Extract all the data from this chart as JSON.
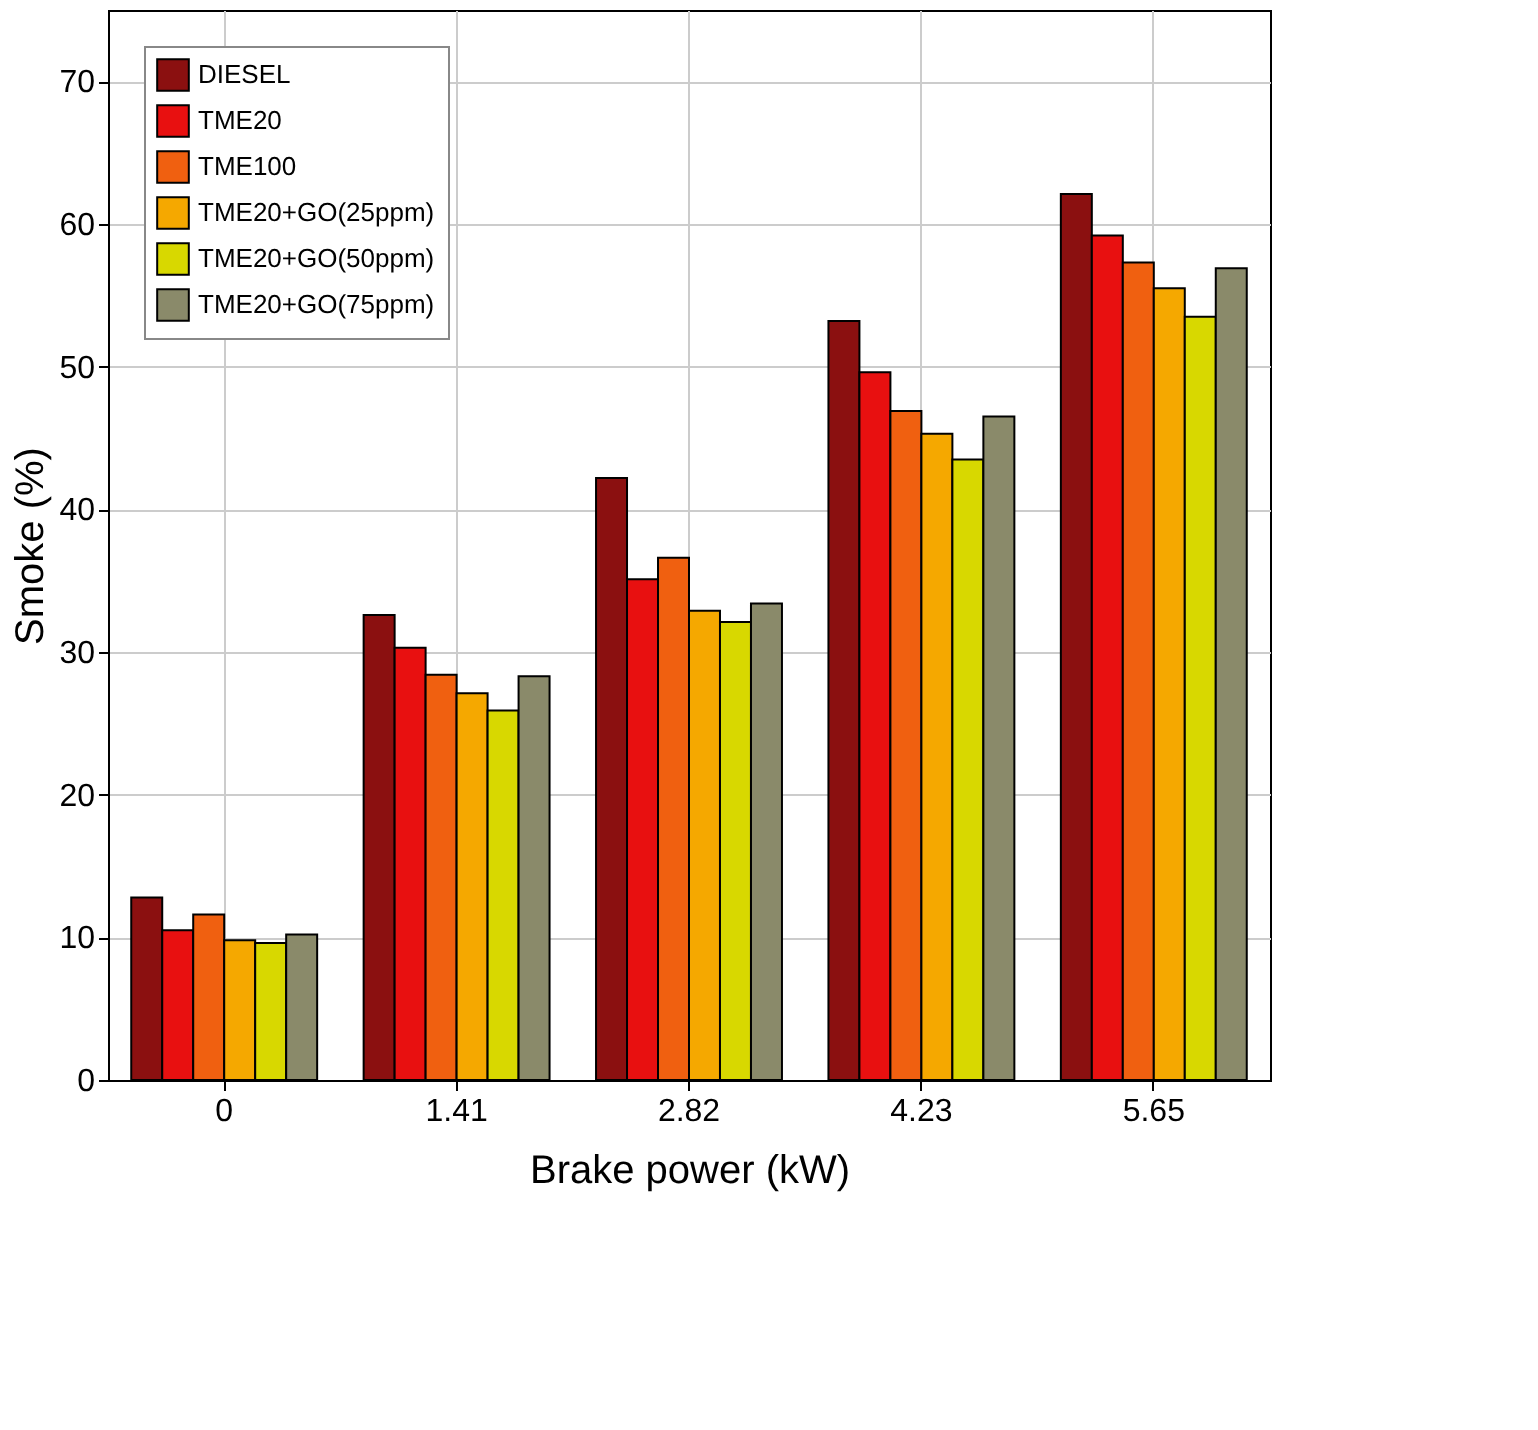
{
  "chart_data": {
    "type": "bar",
    "xlabel": "Brake power (kW)",
    "ylabel": "Smoke (%)",
    "categories": [
      "0",
      "1.41",
      "2.82",
      "4.23",
      "5.65"
    ],
    "series": [
      {
        "name": "DIESEL",
        "color": "#8b1010",
        "values": [
          12.8,
          32.6,
          42.2,
          53.2,
          62.1
        ]
      },
      {
        "name": "TME20",
        "color": "#e81010",
        "values": [
          10.5,
          30.3,
          35.1,
          49.6,
          59.2
        ]
      },
      {
        "name": "TME100",
        "color": "#f06010",
        "values": [
          11.6,
          28.4,
          36.6,
          46.9,
          57.3
        ]
      },
      {
        "name": "TME20+GO(25ppm)",
        "color": "#f5a800",
        "values": [
          9.8,
          27.1,
          32.9,
          45.3,
          55.5
        ]
      },
      {
        "name": "TME20+GO(50ppm)",
        "color": "#d8d800",
        "values": [
          9.6,
          25.9,
          32.1,
          43.5,
          53.5
        ]
      },
      {
        "name": "TME20+GO(75ppm)",
        "color": "#8a8a6a",
        "values": [
          10.2,
          28.3,
          33.4,
          46.5,
          56.9
        ]
      }
    ],
    "ylim": [
      0,
      75
    ],
    "yticks": [
      0,
      10,
      20,
      30,
      40,
      50,
      60,
      70
    ],
    "grid": true,
    "legend": "top left"
  }
}
